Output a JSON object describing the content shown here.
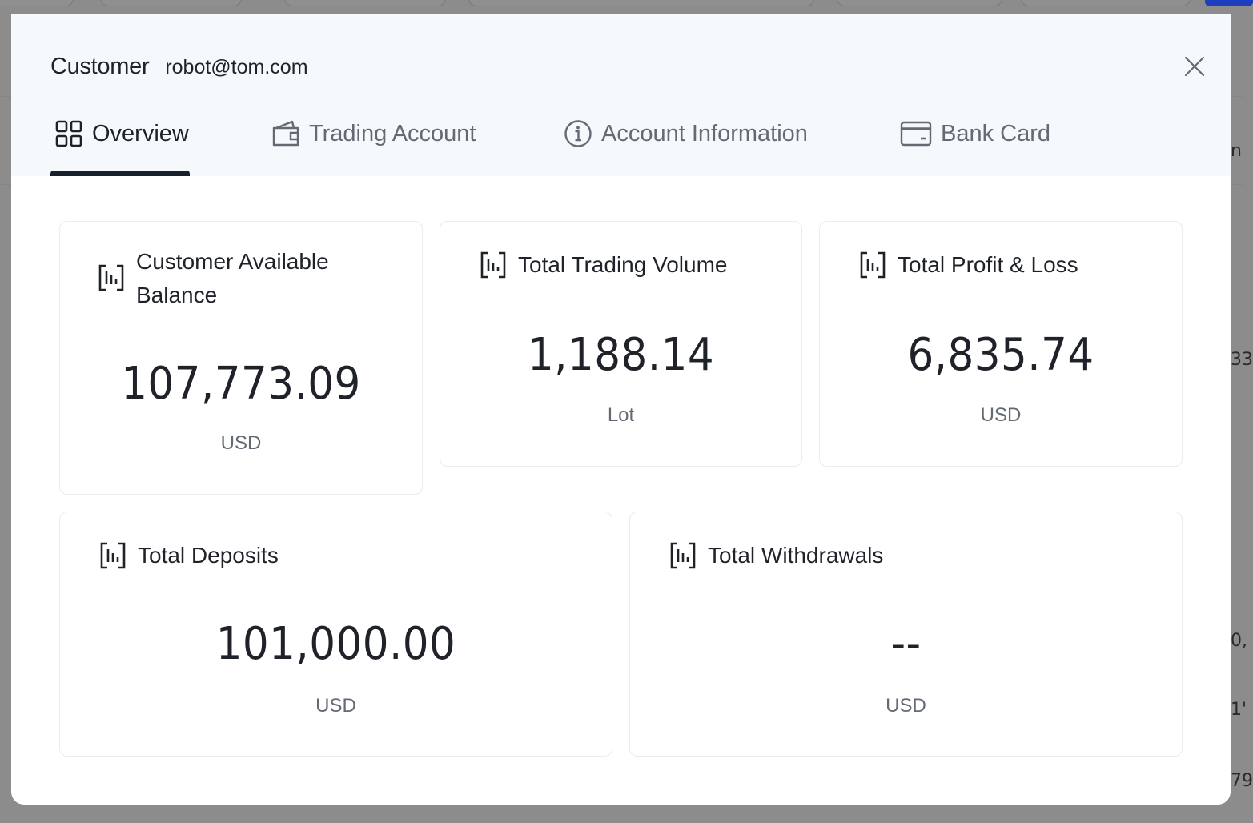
{
  "backdrop": {
    "edge_texts": [
      "n",
      "33",
      "0,",
      "1'",
      "79"
    ]
  },
  "modal": {
    "title_label": "Customer",
    "title_email": "robot@tom.com",
    "close_icon": "close-icon",
    "tabs": [
      {
        "label": "Overview",
        "icon": "grid-icon",
        "active": true
      },
      {
        "label": "Trading Account",
        "icon": "wallet-icon",
        "active": false
      },
      {
        "label": "Account Information",
        "icon": "info-icon",
        "active": false
      },
      {
        "label": "Bank Card",
        "icon": "card-icon",
        "active": false
      }
    ]
  },
  "cards": [
    {
      "title_line1": "Customer Available",
      "title_line2": "Balance",
      "value": "107,773.09",
      "unit": "USD",
      "icon": "chart-icon"
    },
    {
      "title": "Total Trading Volume",
      "value": "1,188.14",
      "unit": "Lot",
      "icon": "chart-icon"
    },
    {
      "title": "Total Profit & Loss",
      "value": "6,835.74",
      "unit": "USD",
      "icon": "chart-icon"
    },
    {
      "title": "Total Deposits",
      "value": "101,000.00",
      "unit": "USD",
      "icon": "chart-icon"
    },
    {
      "title": "Total Withdrawals",
      "value": "--",
      "unit": "USD",
      "icon": "chart-icon"
    }
  ],
  "colors": {
    "accent": "#17212b",
    "header_bg": "#f5f9fc",
    "text": "#1f2329",
    "muted": "#646a73"
  }
}
